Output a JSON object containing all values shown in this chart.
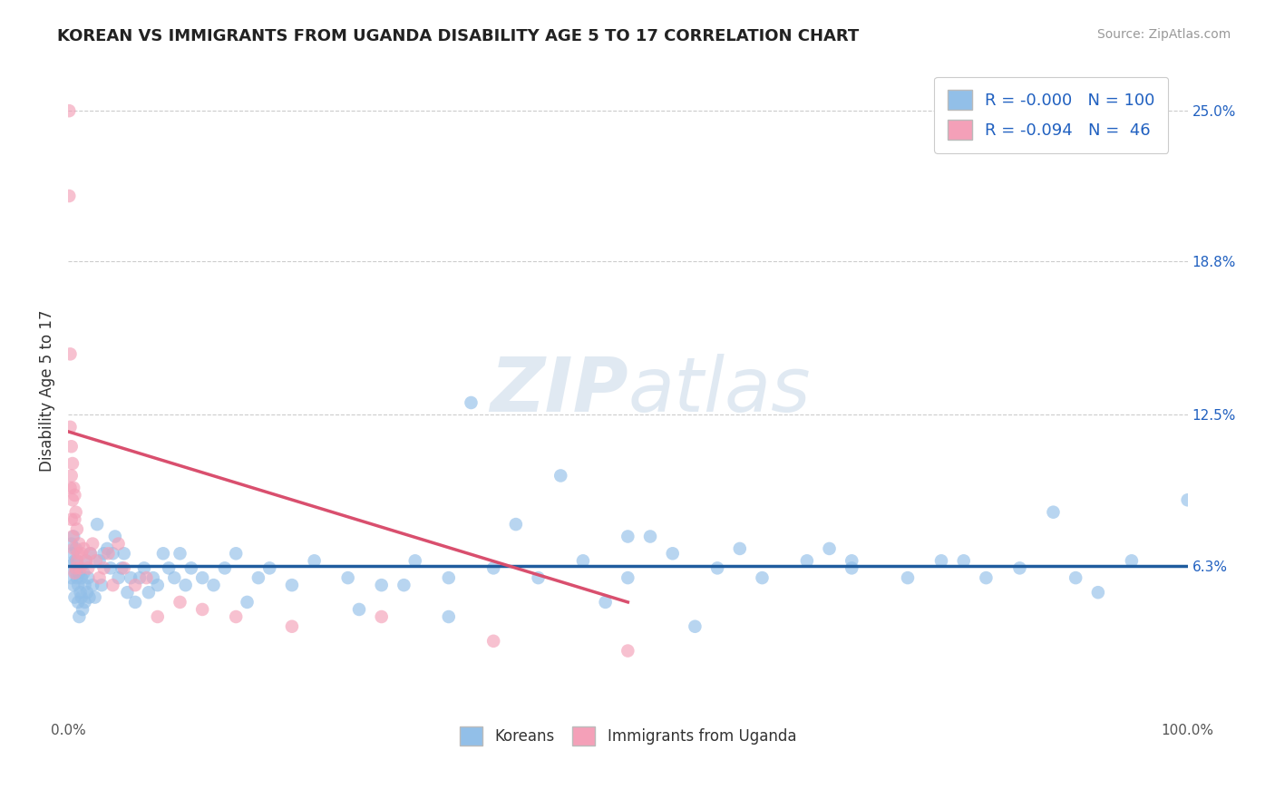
{
  "title": "KOREAN VS IMMIGRANTS FROM UGANDA DISABILITY AGE 5 TO 17 CORRELATION CHART",
  "source": "Source: ZipAtlas.com",
  "ylabel": "Disability Age 5 to 17",
  "xlabel": "",
  "xlim": [
    0,
    1.0
  ],
  "ylim": [
    0.0,
    0.27
  ],
  "xtick_positions": [
    0.0,
    0.1,
    0.2,
    0.3,
    0.4,
    0.5,
    0.6,
    0.7,
    0.8,
    0.9,
    1.0
  ],
  "xtick_labels": [
    "0.0%",
    "",
    "",
    "",
    "",
    "",
    "",
    "",
    "",
    "",
    "100.0%"
  ],
  "ytick_right_values": [
    0.063,
    0.125,
    0.188,
    0.25
  ],
  "ytick_right_labels": [
    "6.3%",
    "12.5%",
    "18.8%",
    "25.0%"
  ],
  "korean_color": "#92bfe8",
  "ugandan_color": "#f4a0b8",
  "korean_line_color": "#1f5c9e",
  "ugandan_line_color": "#d94f6e",
  "watermark": "ZIPatlas",
  "grid_color": "#cccccc",
  "background_color": "#ffffff",
  "korean_scatter": {
    "x": [
      0.002,
      0.003,
      0.003,
      0.004,
      0.005,
      0.005,
      0.006,
      0.006,
      0.007,
      0.007,
      0.008,
      0.008,
      0.009,
      0.009,
      0.01,
      0.01,
      0.011,
      0.012,
      0.012,
      0.013,
      0.014,
      0.015,
      0.015,
      0.016,
      0.017,
      0.018,
      0.019,
      0.02,
      0.022,
      0.024,
      0.026,
      0.028,
      0.03,
      0.032,
      0.035,
      0.038,
      0.04,
      0.042,
      0.045,
      0.048,
      0.05,
      0.053,
      0.056,
      0.06,
      0.064,
      0.068,
      0.072,
      0.076,
      0.08,
      0.085,
      0.09,
      0.095,
      0.1,
      0.105,
      0.11,
      0.12,
      0.13,
      0.14,
      0.15,
      0.16,
      0.17,
      0.18,
      0.2,
      0.22,
      0.25,
      0.28,
      0.31,
      0.34,
      0.38,
      0.42,
      0.46,
      0.5,
      0.54,
      0.58,
      0.62,
      0.66,
      0.7,
      0.75,
      0.8,
      0.85,
      0.9,
      0.95,
      1.0,
      0.36,
      0.44,
      0.3,
      0.52,
      0.68,
      0.78,
      0.88,
      0.4,
      0.5,
      0.6,
      0.7,
      0.82,
      0.92,
      0.26,
      0.34,
      0.48,
      0.56
    ],
    "y": [
      0.063,
      0.072,
      0.058,
      0.068,
      0.075,
      0.055,
      0.065,
      0.05,
      0.07,
      0.06,
      0.058,
      0.065,
      0.048,
      0.055,
      0.042,
      0.06,
      0.052,
      0.05,
      0.058,
      0.045,
      0.06,
      0.055,
      0.048,
      0.065,
      0.052,
      0.058,
      0.05,
      0.068,
      0.055,
      0.05,
      0.08,
      0.065,
      0.055,
      0.068,
      0.07,
      0.062,
      0.068,
      0.075,
      0.058,
      0.062,
      0.068,
      0.052,
      0.058,
      0.048,
      0.058,
      0.062,
      0.052,
      0.058,
      0.055,
      0.068,
      0.062,
      0.058,
      0.068,
      0.055,
      0.062,
      0.058,
      0.055,
      0.062,
      0.068,
      0.048,
      0.058,
      0.062,
      0.055,
      0.065,
      0.058,
      0.055,
      0.065,
      0.058,
      0.062,
      0.058,
      0.065,
      0.058,
      0.068,
      0.062,
      0.058,
      0.065,
      0.062,
      0.058,
      0.065,
      0.062,
      0.058,
      0.065,
      0.09,
      0.13,
      0.1,
      0.055,
      0.075,
      0.07,
      0.065,
      0.085,
      0.08,
      0.075,
      0.07,
      0.065,
      0.058,
      0.052,
      0.045,
      0.042,
      0.048,
      0.038
    ]
  },
  "ugandan_scatter": {
    "x": [
      0.001,
      0.001,
      0.002,
      0.002,
      0.002,
      0.003,
      0.003,
      0.003,
      0.004,
      0.004,
      0.004,
      0.005,
      0.005,
      0.006,
      0.006,
      0.006,
      0.007,
      0.007,
      0.008,
      0.008,
      0.009,
      0.01,
      0.011,
      0.012,
      0.014,
      0.016,
      0.018,
      0.02,
      0.022,
      0.025,
      0.028,
      0.032,
      0.036,
      0.04,
      0.045,
      0.05,
      0.06,
      0.07,
      0.08,
      0.1,
      0.12,
      0.15,
      0.2,
      0.28,
      0.38,
      0.5
    ],
    "y": [
      0.25,
      0.215,
      0.15,
      0.12,
      0.095,
      0.1,
      0.082,
      0.112,
      0.09,
      0.075,
      0.105,
      0.095,
      0.07,
      0.082,
      0.06,
      0.092,
      0.085,
      0.062,
      0.078,
      0.065,
      0.068,
      0.072,
      0.062,
      0.068,
      0.07,
      0.065,
      0.062,
      0.068,
      0.072,
      0.065,
      0.058,
      0.062,
      0.068,
      0.055,
      0.072,
      0.062,
      0.055,
      0.058,
      0.042,
      0.048,
      0.045,
      0.042,
      0.038,
      0.042,
      0.032,
      0.028
    ]
  },
  "korean_line": {
    "x0": 0.0,
    "x1": 1.0,
    "y0": 0.063,
    "y1": 0.063
  },
  "ugandan_line": {
    "x0": 0.001,
    "x1": 0.5,
    "y0": 0.118,
    "y1": 0.048
  }
}
